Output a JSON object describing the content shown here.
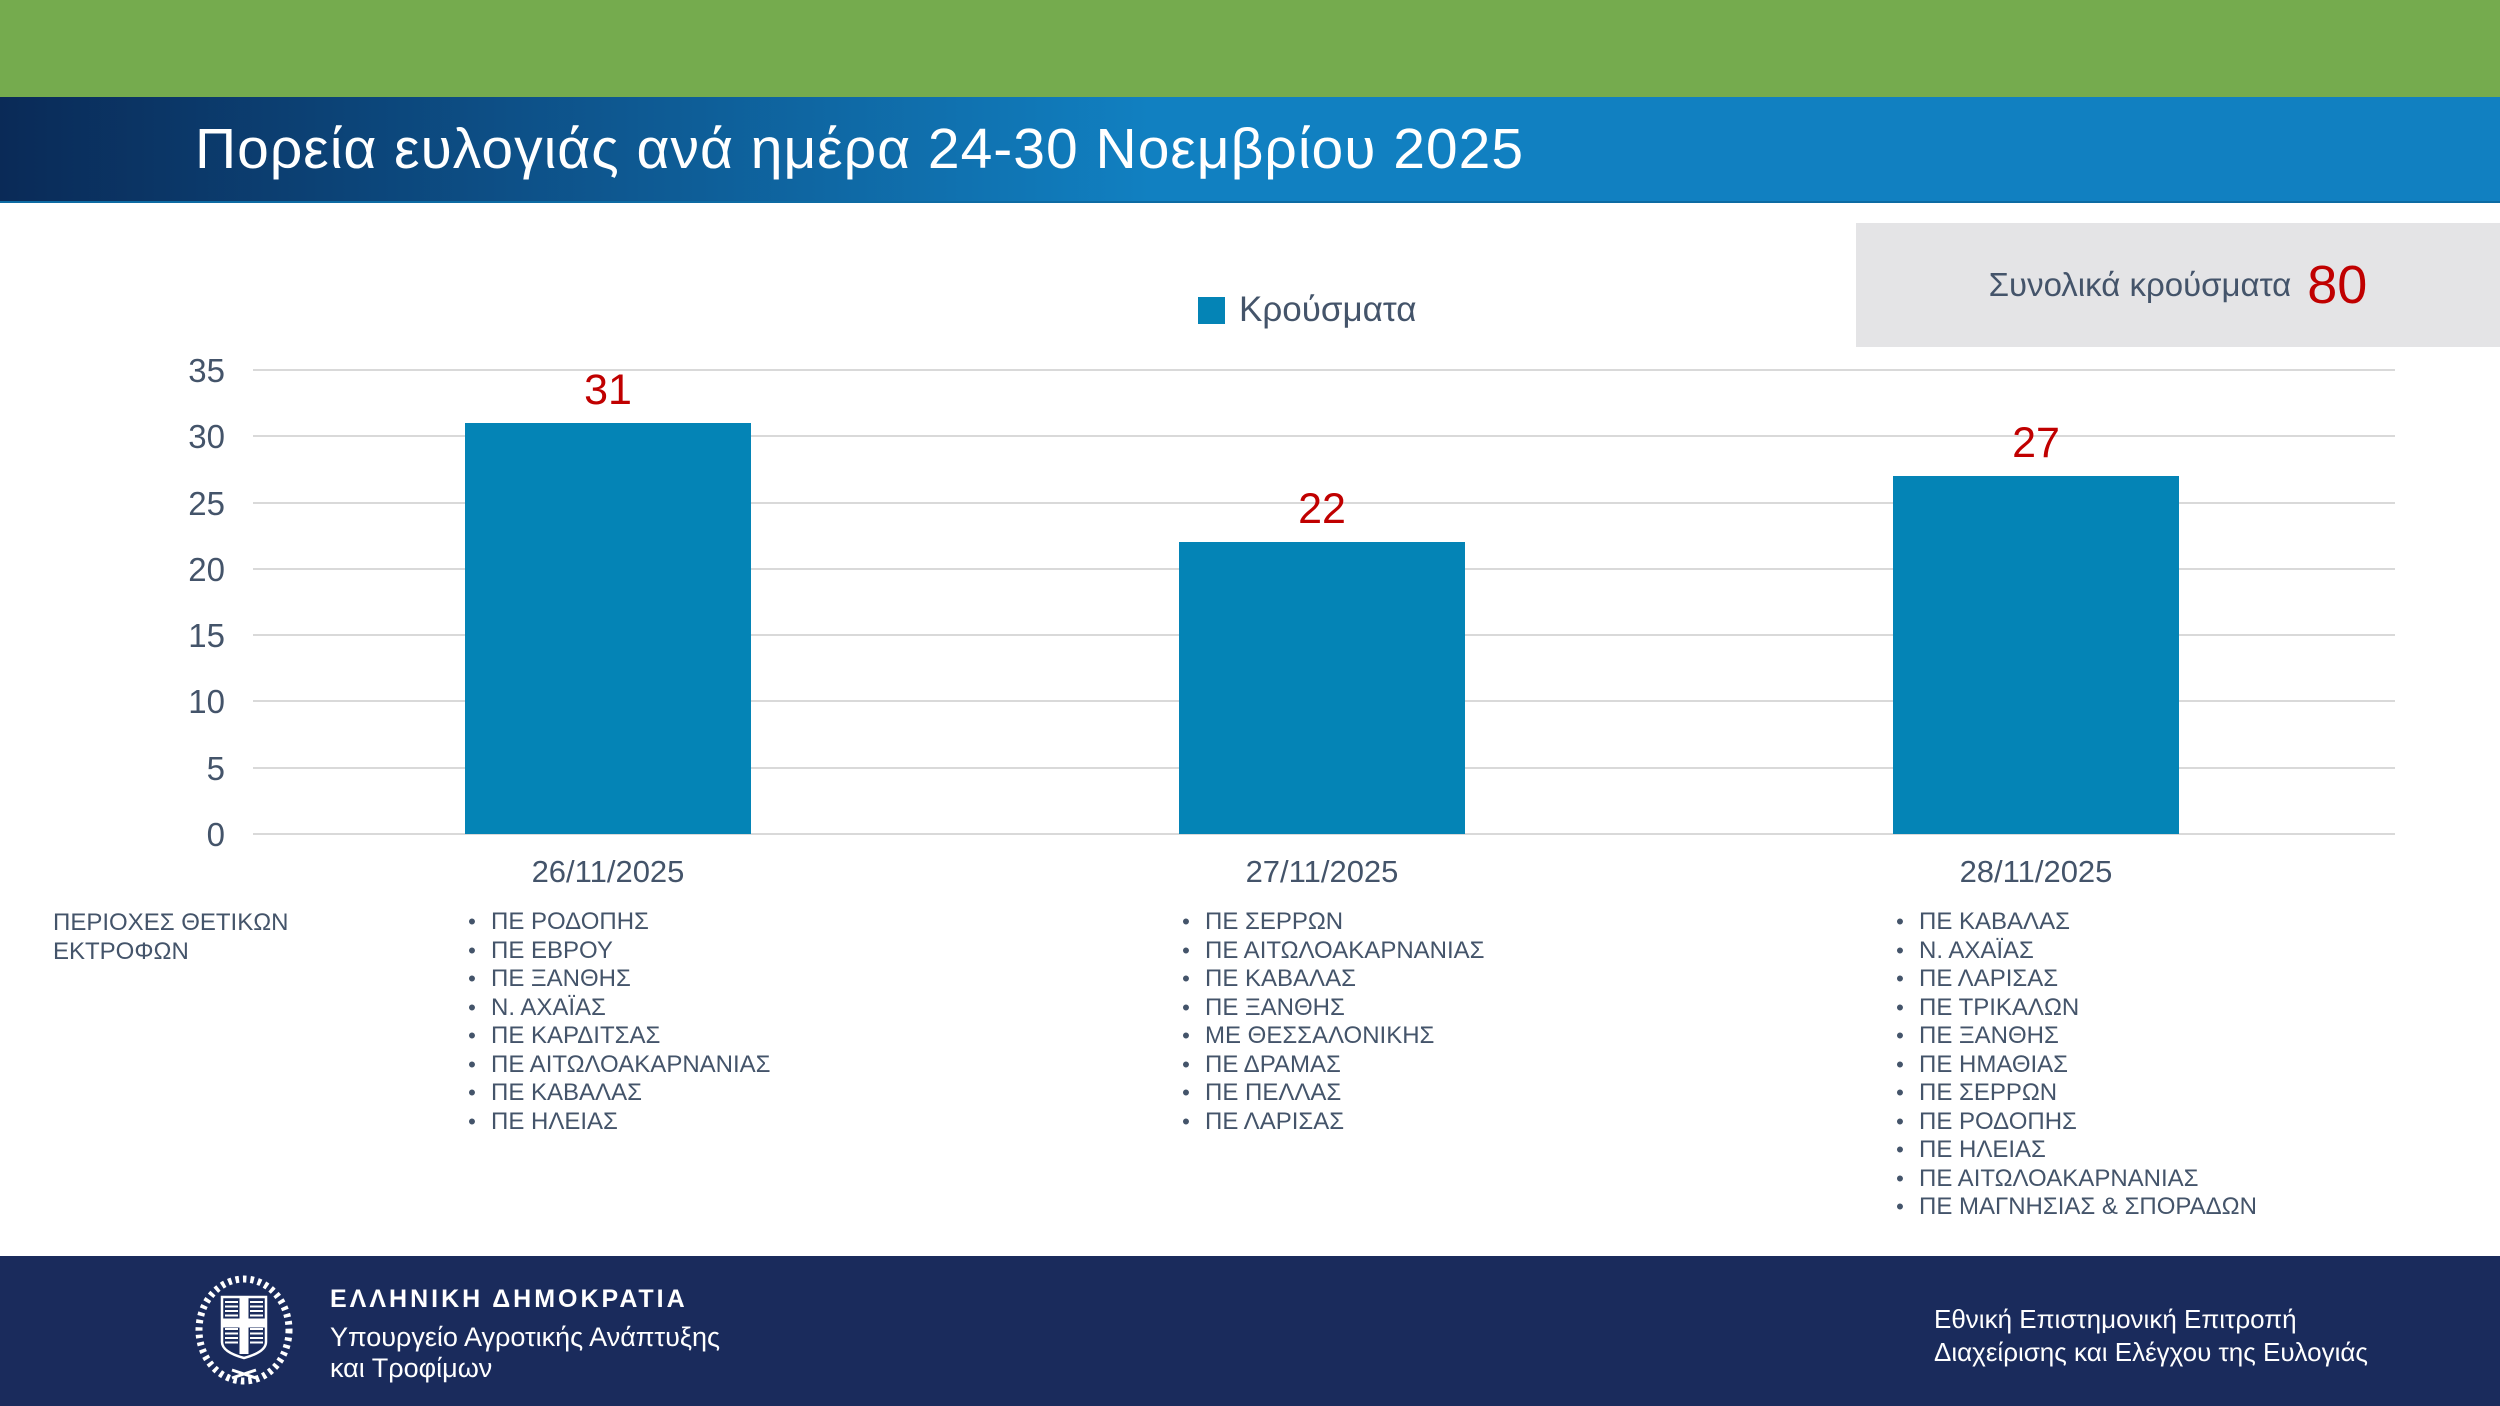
{
  "slide": {
    "title": "Πορεία ευλογιάς ανά ημέρα 24-30 Νοεμβρίου 2025",
    "total_label": "Συνολικά κρούσματα",
    "total_value": "80",
    "side_label": "ΠΕΡΙΟΧΕΣ ΘΕΤΙΚΩΝ ΕΚΤΡΟΦΩΝ"
  },
  "legend": {
    "label": "Κρούσματα"
  },
  "chart_data": {
    "type": "bar",
    "title": "",
    "categories": [
      "26/11/2025",
      "27/11/2025",
      "28/11/2025"
    ],
    "series": [
      {
        "name": "Κρούσματα",
        "values": [
          31,
          22,
          27
        ]
      }
    ],
    "data_labels": [
      "31",
      "22",
      "27"
    ],
    "xlabel": "",
    "ylabel": "",
    "ylim": [
      0,
      35
    ],
    "yticks": [
      0,
      5,
      10,
      15,
      20,
      25,
      30,
      35
    ],
    "grid": true,
    "legend_position": "top-center",
    "bar_color": "#0484b6",
    "data_label_color": "#c00000",
    "axis_text_color": "#44546a",
    "gridline_color": "#d9d9d9"
  },
  "region_lists": [
    {
      "date": "26/11/2025",
      "items": [
        "ΠΕ ΡΟΔΟΠΗΣ",
        "ΠΕ ΕΒΡΟΥ",
        "ΠΕ ΞΑΝΘΗΣ",
        "Ν. ΑΧΑΪΑΣ",
        "ΠΕ ΚΑΡΔΙΤΣΑΣ",
        "ΠΕ ΑΙΤΩΛΟΑΚΑΡΝΑΝΙΑΣ",
        "ΠΕ ΚΑΒΑΛΑΣ",
        "ΠΕ ΗΛΕΙΑΣ"
      ]
    },
    {
      "date": "27/11/2025",
      "items": [
        "ΠΕ ΣΕΡΡΩΝ",
        "ΠΕ ΑΙΤΩΛΟΑΚΑΡΝΑΝΙΑΣ",
        "ΠΕ ΚΑΒΑΛΑΣ",
        "ΠΕ ΞΑΝΘΗΣ",
        "ΜΕ ΘΕΣΣΑΛΟΝΙΚΗΣ",
        "ΠΕ ΔΡΑΜΑΣ",
        "ΠΕ ΠΕΛΛΑΣ",
        "ΠΕ ΛΑΡΙΣΑΣ"
      ]
    },
    {
      "date": "28/11/2025",
      "items": [
        "ΠΕ ΚΑΒΑΛΑΣ",
        "Ν. ΑΧΑΪΑΣ",
        "ΠΕ ΛΑΡΙΣΑΣ",
        "ΠΕ ΤΡΙΚΑΛΩΝ",
        "ΠΕ ΞΑΝΘΗΣ",
        "ΠΕ ΗΜΑΘΙΑΣ",
        "ΠΕ ΣΕΡΡΩΝ",
        "ΠΕ ΡΟΔΟΠΗΣ",
        "ΠΕ ΗΛΕΙΑΣ",
        "ΠΕ ΑΙΤΩΛΟΑΚΑΡΝΑΝΙΑΣ",
        "ΠΕ ΜΑΓΝΗΣΙΑΣ & ΣΠΟΡΑΔΩΝ"
      ]
    }
  ],
  "footer": {
    "org_small": "ΕΛΛΗΝΙΚΗ ΔΗΜΟΚΡΑΤΙΑ",
    "org_line1": "Υπουργείο Αγροτικής Ανάπτυξης",
    "org_line2": "και Τροφίμων",
    "right_line1": "Εθνική Επιστημονική Επιτροπή",
    "right_line2": "Διαχείρισης και Ελέγχου της Ευλογιάς"
  },
  "colors": {
    "top_band": "#75ab4e",
    "title_band_left": "#0a2a57",
    "title_band_right": "#1180c1",
    "footer_band": "#1a2b5c",
    "accent_red": "#c00000",
    "slate_text": "#44546a",
    "total_box_bg": "#e4e4e6"
  }
}
